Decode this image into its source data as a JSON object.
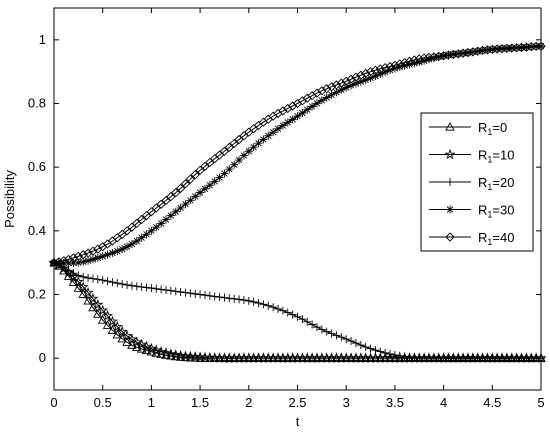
{
  "chart_data": {
    "type": "line",
    "title": "",
    "xlabel": "t",
    "ylabel": "Possibility",
    "xlim": [
      0,
      5
    ],
    "ylim": [
      -0.1,
      1.1
    ],
    "xticks": [
      "0",
      "0.5",
      "1",
      "1.5",
      "2",
      "2.5",
      "3",
      "3.5",
      "4",
      "4.5",
      "5"
    ],
    "yticks": [
      "0",
      "0.2",
      "0.4",
      "0.6",
      "0.8",
      "1"
    ],
    "grid": false,
    "legend_position": "right",
    "colors": {
      "line": "#000000",
      "background": "#ffffff"
    },
    "x": [
      0,
      0.25,
      0.5,
      0.75,
      1,
      1.25,
      1.5,
      1.75,
      2,
      2.25,
      2.5,
      2.75,
      3,
      3.25,
      3.5,
      3.75,
      4,
      4.25,
      4.5,
      4.75,
      5
    ],
    "series": [
      {
        "name": "0",
        "marker": "triangle",
        "values": [
          0.3,
          0.22,
          0.12,
          0.05,
          0.02,
          0.005,
          0,
          0,
          0,
          0,
          0,
          0,
          0,
          0,
          0,
          0,
          0,
          0,
          0,
          0,
          0
        ]
      },
      {
        "name": "10",
        "marker": "star",
        "values": [
          0.3,
          0.24,
          0.15,
          0.07,
          0.03,
          0.01,
          0.003,
          0,
          0,
          0,
          0,
          0,
          0,
          0,
          0,
          0,
          0,
          0,
          0,
          0,
          0
        ]
      },
      {
        "name": "20",
        "marker": "plus",
        "values": [
          0.3,
          0.26,
          0.245,
          0.23,
          0.22,
          0.21,
          0.2,
          0.19,
          0.18,
          0.16,
          0.13,
          0.09,
          0.06,
          0.03,
          0.01,
          0.002,
          0,
          0,
          0,
          0,
          0
        ]
      },
      {
        "name": "30",
        "marker": "asterisk",
        "values": [
          0.3,
          0.3,
          0.32,
          0.35,
          0.4,
          0.46,
          0.52,
          0.58,
          0.65,
          0.71,
          0.76,
          0.81,
          0.85,
          0.88,
          0.91,
          0.93,
          0.95,
          0.96,
          0.97,
          0.975,
          0.98
        ]
      },
      {
        "name": "40",
        "marker": "diamond",
        "values": [
          0.3,
          0.32,
          0.35,
          0.4,
          0.46,
          0.52,
          0.59,
          0.65,
          0.71,
          0.76,
          0.8,
          0.84,
          0.87,
          0.9,
          0.92,
          0.94,
          0.95,
          0.96,
          0.97,
          0.975,
          0.98
        ]
      }
    ],
    "legend_prefix": "R",
    "legend_subscript": "1",
    "legend_eq": "="
  }
}
